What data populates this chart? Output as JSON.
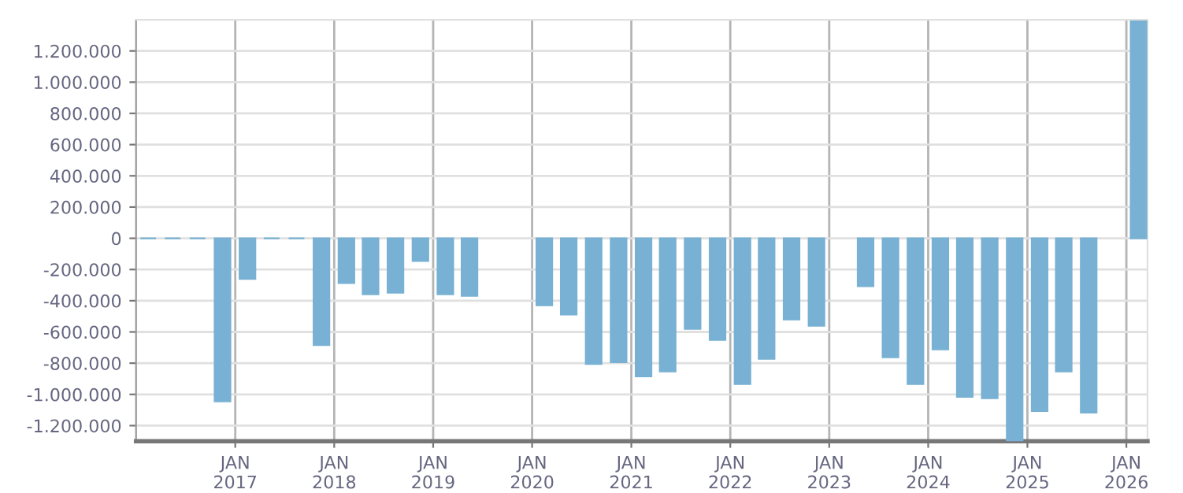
{
  "chart_data": {
    "type": "bar",
    "color": "#78b1d3",
    "x": [
      "2016-02-15",
      "2016-05-15",
      "2016-08-15",
      "2016-11-15",
      "2017-02-15",
      "2017-05-15",
      "2017-08-15",
      "2017-11-15",
      "2018-02-15",
      "2018-05-15",
      "2018-08-15",
      "2018-11-15",
      "2019-02-15",
      "2019-05-15",
      "2019-08-15",
      "2019-11-15",
      "2020-02-15",
      "2020-05-15",
      "2020-08-15",
      "2020-11-15",
      "2021-02-15",
      "2021-05-15",
      "2021-08-15",
      "2021-11-15",
      "2022-02-15",
      "2022-05-15",
      "2022-08-15",
      "2022-11-15",
      "2023-02-15",
      "2023-05-15",
      "2023-08-15",
      "2023-11-15",
      "2024-02-15",
      "2024-05-15",
      "2024-08-15",
      "2024-11-15",
      "2025-02-15",
      "2025-05-15",
      "2025-08-15",
      "2025-11-15",
      "2026-02-15"
    ],
    "values": [
      0,
      0,
      0,
      -1045000,
      -260000,
      0,
      0,
      -684000,
      -287000,
      -358000,
      -348000,
      -146000,
      -358000,
      -368000,
      null,
      null,
      -429000,
      -489000,
      -805000,
      -793000,
      -884000,
      -853000,
      -580000,
      -651000,
      -934000,
      -772000,
      -520000,
      -560000,
      null,
      -307000,
      -762000,
      -934000,
      -712000,
      -1015000,
      -1025000,
      -1300000,
      -1106000,
      -853000,
      -1116000,
      null,
      1390000
    ],
    "xlim": [
      "2016-01-01",
      "2026-03-20"
    ],
    "xticks": [
      {
        "value": "2017-01-01",
        "label": "JAN\n2017"
      },
      {
        "value": "2018-01-01",
        "label": "JAN\n2018"
      },
      {
        "value": "2019-01-01",
        "label": "JAN\n2019"
      },
      {
        "value": "2020-01-01",
        "label": "JAN\n2020"
      },
      {
        "value": "2021-01-01",
        "label": "JAN\n2021"
      },
      {
        "value": "2022-01-01",
        "label": "JAN\n2022"
      },
      {
        "value": "2023-01-01",
        "label": "JAN\n2023"
      },
      {
        "value": "2024-01-01",
        "label": "JAN\n2024"
      },
      {
        "value": "2025-01-01",
        "label": "JAN\n2025"
      },
      {
        "value": "2026-01-01",
        "label": "JAN\n2026"
      }
    ],
    "ylim": [
      -1300000,
      1400000
    ],
    "yticks": [
      {
        "value": -1200000,
        "label": "-1.200.000"
      },
      {
        "value": -1000000,
        "label": "-1.000.000"
      },
      {
        "value": -800000,
        "label": "-800.000"
      },
      {
        "value": -600000,
        "label": "-600.000"
      },
      {
        "value": -400000,
        "label": "-400.000"
      },
      {
        "value": -200000,
        "label": "-200.000"
      },
      0,
      {
        "value": 200000,
        "label": "200.000"
      },
      {
        "value": 400000,
        "label": "400.000"
      },
      {
        "value": 600000,
        "label": "600.000"
      },
      {
        "value": 800000,
        "label": "800.000"
      },
      {
        "value": 1000000,
        "label": "1.000.000"
      },
      {
        "value": 1200000,
        "label": "1.200.000"
      }
    ],
    "grid": true
  }
}
